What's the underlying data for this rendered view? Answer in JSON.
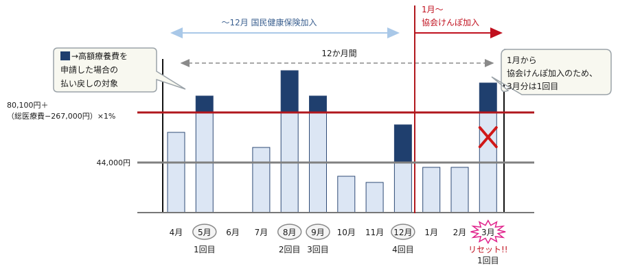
{
  "chart_data": {
    "type": "bar",
    "categories": [
      "4月",
      "5月",
      "6月",
      "7月",
      "8月",
      "9月",
      "10月",
      "11月",
      "12月",
      "1月",
      "2月",
      "3月"
    ],
    "series": [
      {
        "values": [
          117,
          170,
          0,
          95,
          207,
          170,
          53,
          44,
          128,
          66,
          66,
          189
        ]
      }
    ],
    "threshold_high_value": 146,
    "threshold_low_value": 73,
    "threshold_high_label": "80,100円＋\n（総医療費−267,000円）×1%",
    "threshold_low_label": "44,000円",
    "marked_categories": [
      "5月",
      "8月",
      "9月",
      "12月"
    ],
    "reset_category": "3月",
    "count_labels": [
      {
        "category": "5月",
        "text": "1回目"
      },
      {
        "category": "8月",
        "text": "2回目"
      },
      {
        "category": "9月",
        "text": "3回目"
      },
      {
        "category": "12月",
        "text": "4回目"
      },
      {
        "category": "3月",
        "text": "リセット!!\n1回目"
      }
    ],
    "period_top": "〜12月  国民健康保険加入",
    "period_right": "1月〜\n協会けんぽ加入",
    "period_12": "12か月間",
    "legend_text": "→高額療養費を\n申請した場合の\n払い戻しの対象",
    "callout_right": "1月から\n協会けんぽ加入のため、\n3月分は1回目",
    "colors": {
      "bar_fill": "#dce6f4",
      "bar_stroke": "#2e4a75",
      "excess": "#1f3f6e",
      "threshold_high": "#b0161c",
      "threshold_low": "#808080",
      "period_arrow": "#a9c8e8",
      "cross": "#d01818"
    }
  }
}
